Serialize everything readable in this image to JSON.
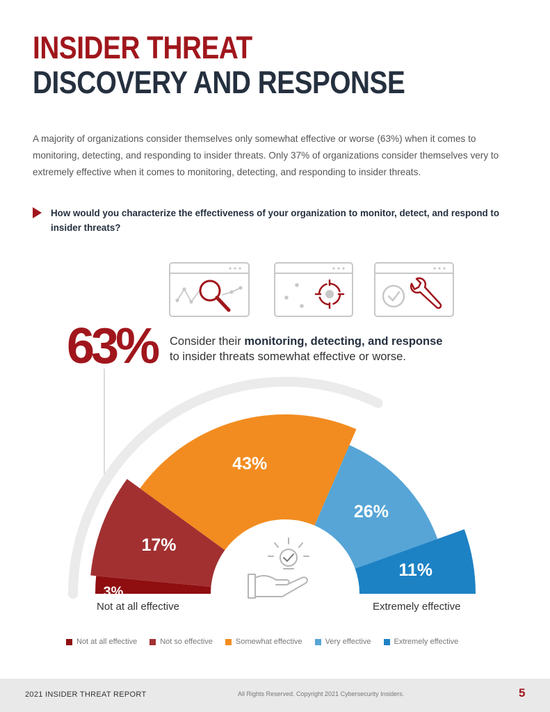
{
  "title": {
    "line1": "INSIDER THREAT",
    "line2": "DISCOVERY AND RESPONSE"
  },
  "intro": "A majority of organizations consider themselves only somewhat effective or worse (63%) when it comes to monitoring, detecting, and responding to insider threats. Only 37% of organizations consider themselves very to extremely effective when it comes to monitoring, detecting, and responding to insider threats.",
  "question": "How would you characterize the effectiveness of your organization to monitor, detect, and respond to insider threats?",
  "headline": {
    "pct": "63%",
    "text_pre": "Consider their ",
    "text_bold": "monitoring, detecting, and response",
    "text_post": "to insider threats somewhat effective or worse."
  },
  "colors": {
    "accent_red": "#a0161c",
    "dark_navy": "#25303f",
    "not_at_all": "#8f0e10",
    "not_so": "#a23031",
    "somewhat": "#f28c20",
    "very": "#56a5d6",
    "extremely": "#1d82c4"
  },
  "icons": [
    "search-chart-window-icon",
    "target-gear-window-icon",
    "check-wrench-window-icon",
    "hand-lightbulb-check-icon"
  ],
  "chart_data": {
    "type": "pie",
    "shape": "semi-donut",
    "categories": [
      "Not at all effective",
      "Not so effective",
      "Somewhat effective",
      "Very effective",
      "Extremely effective"
    ],
    "values": [
      3,
      17,
      43,
      26,
      11
    ],
    "labels": [
      "3%",
      "17%",
      "43%",
      "26%",
      "11%"
    ],
    "axis_left": "Not at all effective",
    "axis_right": "Extremely effective",
    "legend_position": "bottom"
  },
  "footer": {
    "report": "2021 INSIDER THREAT REPORT",
    "copyright": "All Rights Reserved. Copyright 2021 Cybersecurity Insiders.",
    "page": "5"
  }
}
